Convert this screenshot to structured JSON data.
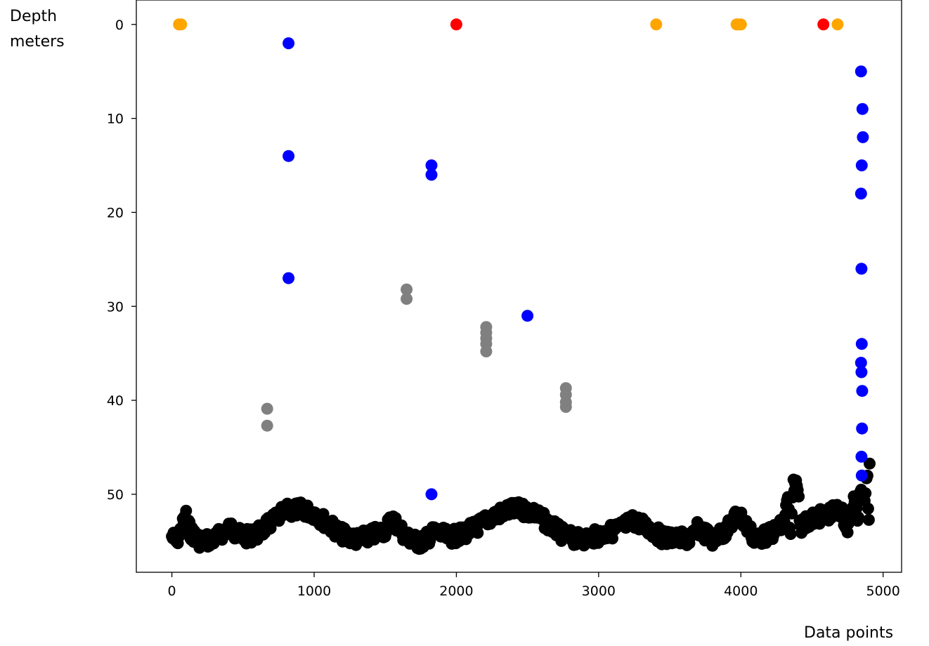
{
  "chart_data": {
    "type": "scatter",
    "title": "",
    "xlabel": "Data points",
    "ylabel": "Depth\nmeters",
    "xlim": [
      -250,
      5130
    ],
    "ylim": [
      58.3,
      -2.6
    ],
    "y_inverted": true,
    "xticks": [
      0,
      1000,
      2000,
      3000,
      4000,
      5000
    ],
    "yticks": [
      0,
      10,
      20,
      30,
      40,
      50
    ],
    "grid": false,
    "legend": "none",
    "series": [
      {
        "color": "#000000",
        "points": [
          [
            0,
            54.5
          ],
          [
            30,
            55
          ],
          [
            60,
            54
          ],
          [
            100,
            52.3
          ],
          [
            130,
            54
          ],
          [
            200,
            55
          ],
          [
            300,
            54.8
          ],
          [
            400,
            53.5
          ],
          [
            500,
            54.6
          ],
          [
            600,
            54.2
          ],
          [
            700,
            53
          ],
          [
            800,
            51.8
          ],
          [
            900,
            51.6
          ],
          [
            1000,
            52
          ],
          [
            1100,
            53.2
          ],
          [
            1200,
            54.3
          ],
          [
            1300,
            54.8
          ],
          [
            1400,
            54.4
          ],
          [
            1500,
            53.8
          ],
          [
            1550,
            52.6
          ],
          [
            1650,
            54.6
          ],
          [
            1750,
            55.2
          ],
          [
            1850,
            54
          ],
          [
            1950,
            54.6
          ],
          [
            2050,
            54.2
          ],
          [
            2150,
            53.4
          ],
          [
            2250,
            52.4
          ],
          [
            2350,
            51.8
          ],
          [
            2450,
            51.6
          ],
          [
            2550,
            52
          ],
          [
            2650,
            53.2
          ],
          [
            2750,
            54.3
          ],
          [
            2850,
            54.8
          ],
          [
            2950,
            54.6
          ],
          [
            3050,
            54.2
          ],
          [
            3150,
            53.6
          ],
          [
            3250,
            52.8
          ],
          [
            3350,
            53.6
          ],
          [
            3450,
            54.6
          ],
          [
            3550,
            54.7
          ],
          [
            3650,
            54.8
          ],
          [
            3700,
            53.6
          ],
          [
            3800,
            54.8
          ],
          [
            3900,
            53.8
          ],
          [
            3980,
            52
          ],
          [
            4050,
            53.6
          ],
          [
            4100,
            54.8
          ],
          [
            4200,
            54.3
          ],
          [
            4300,
            53.2
          ],
          [
            4330,
            50.5
          ],
          [
            4350,
            54.8
          ],
          [
            4370,
            48.8
          ],
          [
            4400,
            49.2
          ],
          [
            4420,
            53.4
          ],
          [
            4500,
            52.6
          ],
          [
            4600,
            52.2
          ],
          [
            4700,
            51.6
          ],
          [
            4750,
            53.6
          ],
          [
            4800,
            50.4
          ],
          [
            4820,
            53.2
          ],
          [
            4840,
            49.2
          ],
          [
            4870,
            50.2
          ],
          [
            4890,
            48
          ],
          [
            4900,
            53.5
          ],
          [
            4905,
            46.8
          ],
          [
            4910,
            47.8
          ]
        ]
      },
      {
        "color": "#0000ff",
        "points": [
          [
            820,
            2
          ],
          [
            820,
            14
          ],
          [
            820,
            27
          ],
          [
            1825,
            15
          ],
          [
            1825,
            16
          ],
          [
            1825,
            50
          ],
          [
            2500,
            31
          ],
          [
            4845,
            5
          ],
          [
            4855,
            9
          ],
          [
            4858,
            12
          ],
          [
            4850,
            15
          ],
          [
            4845,
            18
          ],
          [
            4848,
            26
          ],
          [
            4850,
            34
          ],
          [
            4845,
            36
          ],
          [
            4848,
            37
          ],
          [
            4853,
            39
          ],
          [
            4852,
            43
          ],
          [
            4848,
            46
          ],
          [
            4850,
            48
          ]
        ]
      },
      {
        "color": "#808080",
        "points": [
          [
            670,
            40.9
          ],
          [
            670,
            42.7
          ],
          [
            1650,
            28.2
          ],
          [
            1650,
            29.2
          ],
          [
            2210,
            32.2
          ],
          [
            2210,
            32.8
          ],
          [
            2210,
            33.4
          ],
          [
            2210,
            34
          ],
          [
            2210,
            34.8
          ],
          [
            2770,
            38.7
          ],
          [
            2770,
            39.4
          ],
          [
            2770,
            40.2
          ],
          [
            2770,
            40.7
          ]
        ]
      },
      {
        "color": "#ffa500",
        "points": [
          [
            50,
            0
          ],
          [
            65,
            0
          ],
          [
            3405,
            0
          ],
          [
            3970,
            0
          ],
          [
            3985,
            0
          ],
          [
            4000,
            0
          ],
          [
            4680,
            0
          ]
        ]
      },
      {
        "color": "#ff0000",
        "points": [
          [
            2000,
            0
          ],
          [
            4580,
            0
          ]
        ]
      }
    ]
  }
}
